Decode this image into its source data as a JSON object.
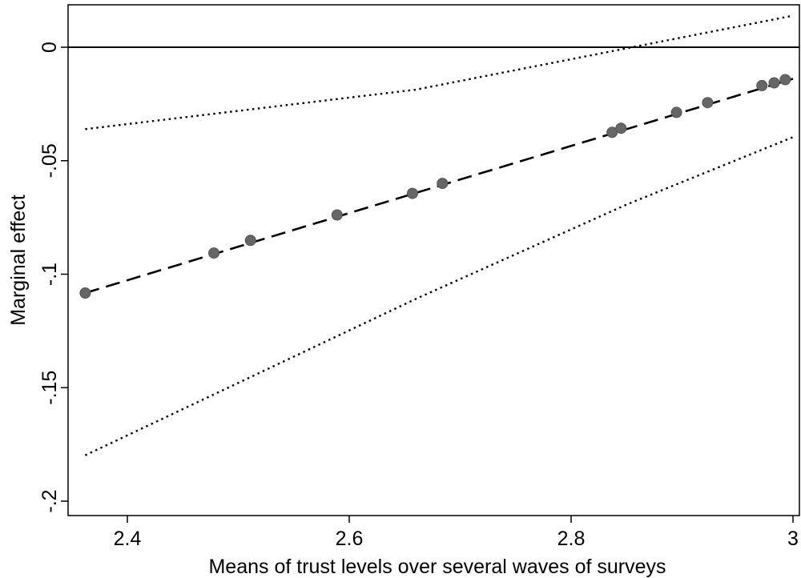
{
  "chart_data": {
    "type": "line",
    "title": "",
    "xlabel": "Means of trust levels over several waves of surveys",
    "ylabel": "Marginal effect",
    "xlim": [
      2.36,
      3.0
    ],
    "ylim": [
      -0.2,
      0.017
    ],
    "x_ticks": [
      2.4,
      2.6,
      2.8,
      3.0
    ],
    "x_tick_labels": [
      "2.4",
      "2.6",
      "2.8",
      "3"
    ],
    "y_ticks": [
      0,
      -0.05,
      -0.1,
      -0.15,
      -0.2
    ],
    "y_tick_labels": [
      "0",
      "-.05",
      "-.1",
      "-.15",
      "-.2"
    ],
    "grid": false,
    "reference_line": 0,
    "series": [
      {
        "role": "estimate",
        "style": "dashed",
        "x": [
          2.362,
          3.0
        ],
        "y": [
          -0.1083,
          -0.0139
        ]
      },
      {
        "role": "upper-bound",
        "style": "dotted",
        "x": [
          2.362,
          2.66,
          3.0
        ],
        "y": [
          -0.0361,
          -0.0187,
          0.0139
        ]
      },
      {
        "role": "lower-bound",
        "style": "dotted",
        "x": [
          2.362,
          2.66,
          2.85,
          3.0
        ],
        "y": [
          -0.1798,
          -0.1109,
          -0.0693,
          -0.0396
        ]
      }
    ],
    "points": {
      "x": [
        2.362,
        2.478,
        2.511,
        2.589,
        2.657,
        2.684,
        2.837,
        2.845,
        2.895,
        2.923,
        2.972,
        2.983,
        2.993
      ],
      "y": [
        -0.1083,
        -0.0907,
        -0.0851,
        -0.0739,
        -0.0644,
        -0.06,
        -0.0375,
        -0.0357,
        -0.0287,
        -0.0244,
        -0.0169,
        -0.0157,
        -0.0143
      ]
    }
  }
}
